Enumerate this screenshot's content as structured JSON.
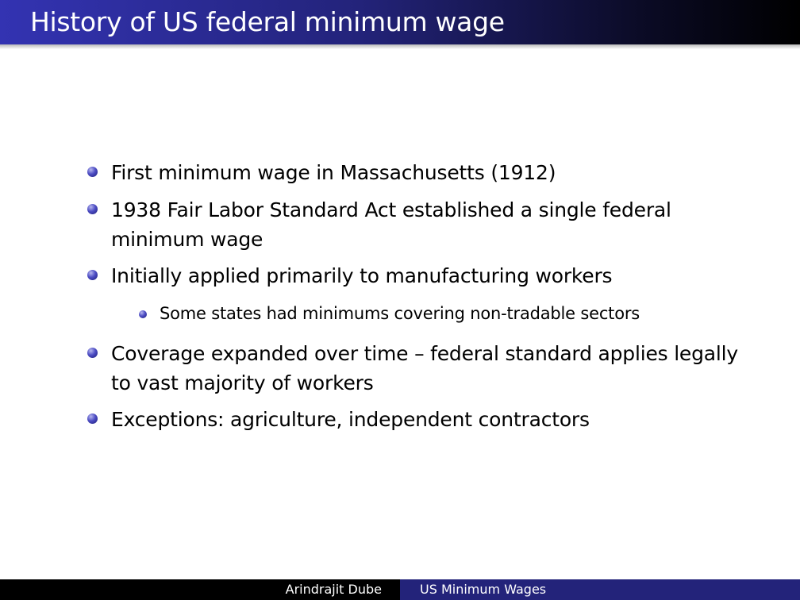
{
  "slide": {
    "title": "History of US federal minimum wage"
  },
  "bullets": [
    {
      "lines": [
        "First minimum wage in Massachusetts (1912)"
      ]
    },
    {
      "lines": [
        "1938 Fair Labor Standard Act established a single federal",
        "minimum wage"
      ]
    },
    {
      "lines": [
        "Initially applied primarily to manufacturing workers"
      ]
    },
    {
      "lines": [
        "Coverage expanded over time – federal standard applies legally",
        "to vast majority of workers"
      ]
    },
    {
      "lines": [
        "Exceptions: agriculture, independent contractors"
      ]
    }
  ],
  "sub_bullets": [
    {
      "text": "Some states had minimums covering non-tradable sectors"
    }
  ],
  "footer": {
    "author": "Arindrajit Dube",
    "short_title": "US Minimum Wages"
  },
  "colors": {
    "title_bar_start": "#3333b2",
    "title_bar_end": "#000000",
    "footer_left": "#000000",
    "footer_right": "#23237a",
    "bullet": "#4d4dc4"
  }
}
